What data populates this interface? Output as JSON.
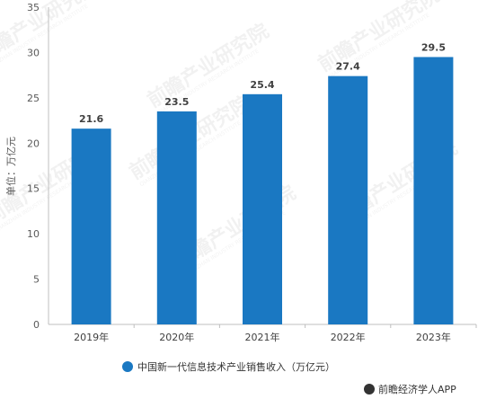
{
  "chart_data": {
    "type": "bar",
    "categories": [
      "2019年",
      "2020年",
      "2021年",
      "2022年",
      "2023年"
    ],
    "series": [
      {
        "name": "中国新一代信息技术产业销售收入（万亿元）",
        "values": [
          21.6,
          23.5,
          25.4,
          27.4,
          29.5
        ]
      }
    ],
    "data_labels": [
      "21.6",
      "23.5",
      "25.4",
      "27.4",
      "29.5"
    ],
    "ylabel": "单位：万亿元",
    "ylim": [
      0,
      35
    ],
    "yticks": [
      0,
      5,
      10,
      15,
      20,
      25,
      30,
      35
    ],
    "grid": false,
    "legend_position": "bottom",
    "bar_color": "#1a78c2"
  },
  "watermark": {
    "text": "前瞻产业研究院",
    "subtext": "QIANZHAN INDUSTRY RESEARCH INSTITUTE"
  },
  "brand": {
    "icon": "paw-icon",
    "text": "前瞻经济学人APP"
  }
}
